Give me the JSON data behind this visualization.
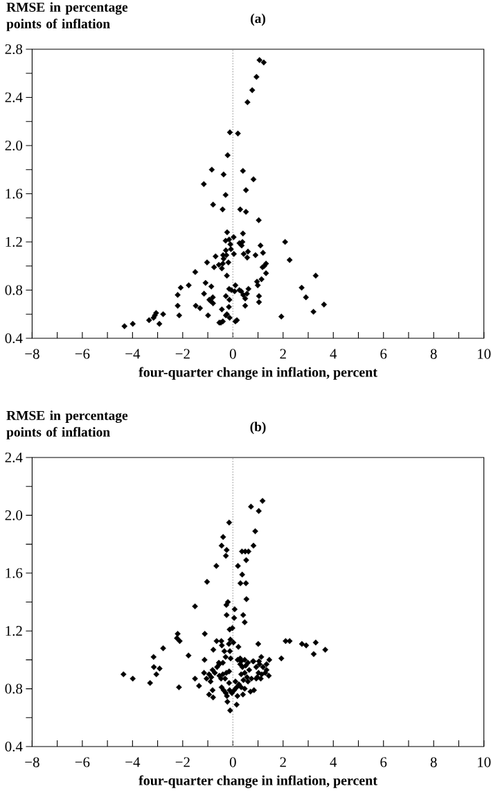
{
  "chart_data": [
    {
      "type": "scatter",
      "title": "(a)",
      "ylabel": "RMSE in percentage points of inflation",
      "xlabel": "four-quarter change in inflation, percent",
      "color": "#000000",
      "marker": "diamond",
      "xlim": [
        -8,
        10
      ],
      "ylim": [
        0.4,
        2.8
      ],
      "xticks": [
        {
          "value": -8,
          "label": "−8"
        },
        {
          "value": -7,
          "label": null
        },
        {
          "value": -6,
          "label": "−6"
        },
        {
          "value": -5,
          "label": null
        },
        {
          "value": -4,
          "label": "−4"
        },
        {
          "value": -3,
          "label": null
        },
        {
          "value": -2,
          "label": "−2"
        },
        {
          "value": -1,
          "label": null
        },
        0,
        {
          "value": 1,
          "label": null
        },
        2,
        {
          "value": 3,
          "label": null
        },
        4,
        {
          "value": 5,
          "label": null
        },
        6,
        {
          "value": 7,
          "label": null
        },
        8,
        {
          "value": 9,
          "label": null
        },
        10
      ],
      "yticks": [
        0.4,
        {
          "value": 0.6,
          "label": null
        },
        0.8,
        {
          "value": 1.0,
          "label": null
        },
        1.2,
        {
          "value": 1.4,
          "label": null
        },
        1.6,
        {
          "value": 1.8,
          "label": null
        },
        {
          "value": 2,
          "label": "2.0"
        },
        {
          "value": 2.2,
          "label": null
        },
        2.4,
        {
          "value": 2.6,
          "label": null
        },
        2.8
      ],
      "ref_lines": [
        {
          "axis": "x",
          "value": 0,
          "color": "#b4b4b4",
          "line_style": "dotted"
        }
      ],
      "x": [
        1.06,
        1.23,
        0.94,
        0.77,
        0.58,
        -0.12,
        0.2,
        -0.21,
        -0.84,
        -0.37,
        0.4,
        0.82,
        -1.16,
        -0.29,
        0.52,
        -0.79,
        -0.41,
        0.29,
        0.52,
        1.03,
        -0.23,
        0.4,
        -0.29,
        -0.15,
        0.03,
        -0.1,
        0.26,
        0.38,
        0.35,
        1.1,
        2.08,
        -0.08,
        -0.28,
        0.6,
        1.2,
        -0.39,
        -0.26,
        -0.69,
        0.04,
        0.43,
        0.9,
        0.57,
        2.26,
        -0.37,
        -1.03,
        -0.18,
        -0.56,
        -0.4,
        1.32,
        1.25,
        1.18,
        -0.75,
        -0.44,
        -1.5,
        1.32,
        -0.24,
        3.3,
        1.14,
        0.96,
        -1.09,
        0.99,
        -1.76,
        -2.08,
        -0.86,
        0.1,
        2.74,
        -0.15,
        -0.06,
        0.07,
        0.26,
        0.33,
        0.62,
        0.41,
        0.56,
        -2.2,
        -1.15,
        -0.28,
        2.91,
        1.04,
        -0.8,
        -0.94,
        -0.14,
        0.49,
        -0.89,
        -0.79,
        1.04,
        0.49,
        -1.48,
        -2.2,
        3.63,
        -1.31,
        -0.44,
        -0.16,
        3.21,
        -3.06,
        -2.78,
        -2.14,
        -0.99,
        -0.24,
        -0.13,
        -0.28,
        1.93,
        -3.16,
        -3.11,
        -3.34,
        -2.93,
        -0.54,
        -0.4,
        -0.48,
        0.1,
        0.16,
        -4.32,
        -3.99
      ],
      "values": [
        2.71,
        2.69,
        2.57,
        2.46,
        2.36,
        2.11,
        2.1,
        1.92,
        1.8,
        1.76,
        1.79,
        1.72,
        1.68,
        1.59,
        1.63,
        1.51,
        1.47,
        1.47,
        1.45,
        1.38,
        1.28,
        1.27,
        1.21,
        1.22,
        1.24,
        1.18,
        1.19,
        1.2,
        1.17,
        1.17,
        1.2,
        1.14,
        1.13,
        1.12,
        1.11,
        1.09,
        1.09,
        1.08,
        1.1,
        1.1,
        1.09,
        1.07,
        1.05,
        1.06,
        1.03,
        1.03,
        1.01,
        1.02,
        1.02,
        1.0,
        0.99,
        0.99,
        0.98,
        0.95,
        0.94,
        0.92,
        0.92,
        0.89,
        0.87,
        0.86,
        0.84,
        0.84,
        0.82,
        0.83,
        0.84,
        0.82,
        0.81,
        0.8,
        0.79,
        0.8,
        0.79,
        0.81,
        0.76,
        0.77,
        0.76,
        0.77,
        0.75,
        0.74,
        0.75,
        0.74,
        0.72,
        0.72,
        0.73,
        0.71,
        0.69,
        0.7,
        0.67,
        0.67,
        0.67,
        0.68,
        0.65,
        0.64,
        0.66,
        0.62,
        0.61,
        0.6,
        0.59,
        0.59,
        0.6,
        0.57,
        0.59,
        0.58,
        0.57,
        0.59,
        0.55,
        0.52,
        0.53,
        0.54,
        0.53,
        0.54,
        0.55,
        0.5,
        0.52
      ]
    },
    {
      "type": "scatter",
      "title": "(b)",
      "ylabel": "RMSE in percentage points of inflation",
      "xlabel": "four-quarter change in inflation, percent",
      "color": "#000000",
      "marker": "diamond",
      "xlim": [
        -8,
        10
      ],
      "ylim": [
        0.4,
        2.4
      ],
      "xticks": [
        {
          "value": -8,
          "label": "−8"
        },
        {
          "value": -7,
          "label": null
        },
        {
          "value": -6,
          "label": "−6"
        },
        {
          "value": -5,
          "label": null
        },
        {
          "value": -4,
          "label": "−4"
        },
        {
          "value": -3,
          "label": null
        },
        {
          "value": -2,
          "label": "−2"
        },
        {
          "value": -1,
          "label": null
        },
        0,
        {
          "value": 1,
          "label": null
        },
        2,
        {
          "value": 3,
          "label": null
        },
        4,
        {
          "value": 5,
          "label": null
        },
        6,
        {
          "value": 7,
          "label": null
        },
        8,
        {
          "value": 9,
          "label": null
        },
        10
      ],
      "yticks": [
        0.4,
        {
          "value": 0.6,
          "label": null
        },
        0.8,
        {
          "value": 1.0,
          "label": null
        },
        1.2,
        {
          "value": 1.4,
          "label": null
        },
        1.6,
        {
          "value": 1.8,
          "label": null
        },
        {
          "value": 2,
          "label": "2.0"
        },
        {
          "value": 2.2,
          "label": null
        },
        2.4
      ],
      "ref_lines": [
        {
          "axis": "x",
          "value": 0,
          "color": "#b4b4b4",
          "line_style": "dotted"
        }
      ],
      "x": [
        1.18,
        0.72,
        1.03,
        -0.15,
        0.89,
        -0.39,
        -0.45,
        -0.25,
        0.82,
        0.36,
        0.49,
        0.62,
        -0.28,
        0.53,
        -0.66,
        0.2,
        0.37,
        -1.03,
        0.3,
        0.52,
        0.54,
        -1.51,
        -0.2,
        -0.26,
        0.07,
        -0.25,
        0.05,
        0.41,
        0.47,
        -0.02,
        -0.13,
        -2.2,
        -1.12,
        -2.23,
        -2.12,
        -0.65,
        -0.46,
        -0.1,
        0.02,
        -0.16,
        -0.44,
        0.22,
        1.01,
        2.1,
        2.26,
        2.75,
        2.92,
        3.3,
        3.68,
        3.22,
        -2.78,
        -0.78,
        -0.34,
        -0.12,
        -3.16,
        -1.77,
        -1.13,
        -0.29,
        -0.09,
        1.13,
        1.45,
        1.93,
        0.29,
        0.47,
        0.82,
        1.04,
        1.34,
        -0.56,
        -0.4,
        -3.15,
        -2.92,
        -3.05,
        -4.36,
        -3.99,
        -3.3,
        -2.15,
        -1.51,
        -1.35,
        -1.15,
        -0.89,
        -0.95,
        -0.79,
        -0.81,
        -1.05,
        -0.81,
        -0.63,
        -0.54,
        -0.95,
        -0.86,
        -0.72,
        -0.54,
        -0.4,
        -0.26,
        -0.15,
        -0.31,
        -0.47,
        -0.15,
        -0.45,
        -0.37,
        -0.28,
        -0.24,
        -0.22,
        -0.11,
        -0.13,
        -0.04,
        0.05,
        0.15,
        0.24,
        0.1,
        0.33,
        0.47,
        0.4,
        0.18,
        0.15,
        0.19,
        0.33,
        0.6,
        0.29,
        0.38,
        0.51,
        0.65,
        0.47,
        0.33,
        0.56,
        0.42,
        0.6,
        0.74,
        0.84,
        0.7,
        0.8,
        0.93,
        1.06,
        1.2,
        1.34,
        1.02,
        1.15,
        1.29,
        1.43,
        0.93,
        1.11,
        0.97
      ],
      "values": [
        2.1,
        2.06,
        2.03,
        1.95,
        1.89,
        1.85,
        1.79,
        1.76,
        1.79,
        1.75,
        1.75,
        1.75,
        1.72,
        1.69,
        1.65,
        1.65,
        1.59,
        1.54,
        1.53,
        1.53,
        1.42,
        1.37,
        1.4,
        1.38,
        1.35,
        1.31,
        1.29,
        1.31,
        1.26,
        1.22,
        1.21,
        1.18,
        1.18,
        1.15,
        1.13,
        1.13,
        1.13,
        1.14,
        1.12,
        1.11,
        1.1,
        1.09,
        1.11,
        1.13,
        1.13,
        1.11,
        1.1,
        1.12,
        1.07,
        1.04,
        1.08,
        1.07,
        1.06,
        1.06,
        1.02,
        1.03,
        1.0,
        1.02,
        1.01,
        1.02,
        1.0,
        1.01,
        1.01,
        1.0,
        0.99,
        0.99,
        0.97,
        0.98,
        0.98,
        0.95,
        0.94,
        0.9,
        0.9,
        0.87,
        0.84,
        0.81,
        0.87,
        0.82,
        0.91,
        0.85,
        0.76,
        0.74,
        0.79,
        0.87,
        0.93,
        0.95,
        0.97,
        0.9,
        0.88,
        0.91,
        0.89,
        0.9,
        0.91,
        0.92,
        0.87,
        0.87,
        0.84,
        0.81,
        0.79,
        0.77,
        0.75,
        0.71,
        0.65,
        0.79,
        0.77,
        0.79,
        0.81,
        0.83,
        0.85,
        0.81,
        0.8,
        0.76,
        0.75,
        0.69,
        1.0,
        0.99,
        0.98,
        0.97,
        0.95,
        0.96,
        0.93,
        0.91,
        0.9,
        0.88,
        0.86,
        0.85,
        0.87,
        0.79,
        0.78,
        0.99,
        0.95,
        0.97,
        0.95,
        0.93,
        0.91,
        0.9,
        0.91,
        0.89,
        0.87,
        0.87,
        0.88
      ]
    }
  ]
}
